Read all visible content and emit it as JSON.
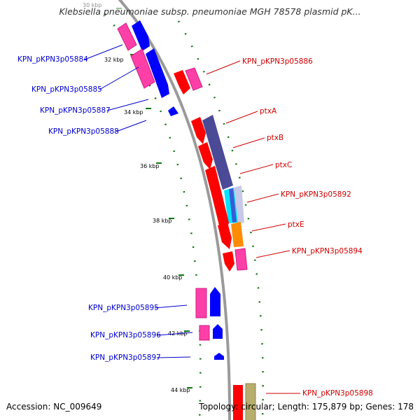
{
  "title": "Klebsiella pneumoniae subsp. pneumoniae MGH 78578 plasmid pK...",
  "footer": {
    "accession": "Accession: NC_009649",
    "topology": "Topology: circular; Length: 175,879 bp; Genes: 178"
  },
  "ticks": [
    "30 kbp",
    "32 kbp",
    "34 kbp",
    "36 kbp",
    "38 kbp",
    "40 kbp",
    "42 kbp",
    "44 kbp"
  ],
  "left_labels": [
    "KPN_pKPN3p05884",
    "KPN_pKPN3p05885",
    "KPN_pKPN3p05887",
    "KPN_pKPN3p05888",
    "KPN_pKPN3p05895",
    "KPN_pKPN3p05896",
    "KPN_pKPN3p05897"
  ],
  "right_labels": [
    "KPN_pKPN3p05886",
    "ptxA",
    "ptxB",
    "ptxC",
    "KPN_pKPN3p05892",
    "ptxE",
    "KPN_pKPN3p05894",
    "KPN_pKPN3p05898"
  ],
  "colors": {
    "backbone": "#9a9a9a",
    "forward_cds": "#0000ff",
    "reverse_cds": "#ff0000",
    "forward_label": "#0000cc",
    "reverse_label": "#cc0000",
    "gc_dots": "#117711",
    "ptx_cluster": "#4b4a96",
    "cyan_feature": "#00e5ff",
    "orange_feature": "#ff8c00",
    "pink_feature": "#ff3fa8",
    "tan_feature": "#b7ad6d"
  }
}
